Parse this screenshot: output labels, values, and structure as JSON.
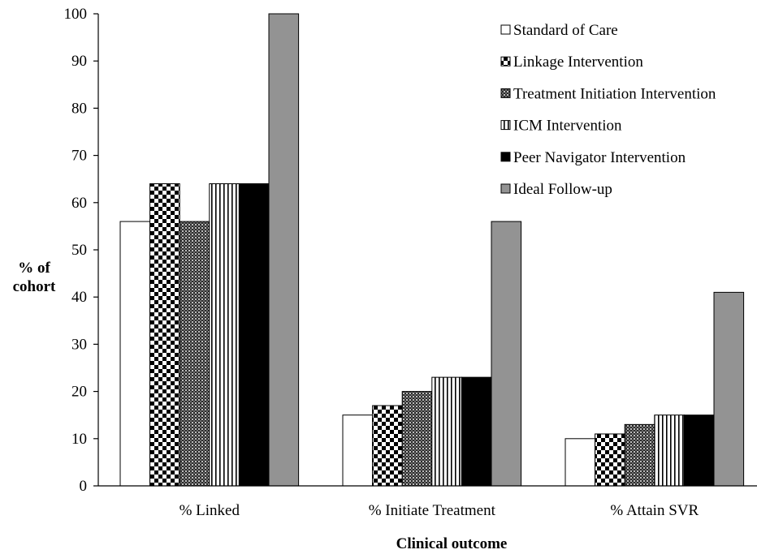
{
  "chart_data": {
    "type": "bar",
    "xlabel": "Clinical outcome",
    "ylabel": [
      "% of",
      "cohort"
    ],
    "ylim": [
      0,
      100
    ],
    "yticks": [
      0,
      10,
      20,
      30,
      40,
      50,
      60,
      70,
      80,
      90,
      100
    ],
    "categories": [
      "% Linked",
      "% Initiate Treatment",
      "% Attain SVR"
    ],
    "legend_position": "top-right",
    "grid": false,
    "series": [
      {
        "name": "Standard of Care",
        "pattern": "white",
        "values": [
          56,
          15,
          10
        ]
      },
      {
        "name": "Linkage Intervention",
        "pattern": "checker",
        "values": [
          64,
          17,
          11
        ]
      },
      {
        "name": "Treatment Initiation Intervention",
        "pattern": "dots",
        "values": [
          56,
          20,
          13
        ]
      },
      {
        "name": "ICM Intervention",
        "pattern": "vstripes",
        "values": [
          64,
          23,
          15
        ]
      },
      {
        "name": "Peer Navigator Intervention",
        "pattern": "black",
        "values": [
          64,
          23,
          15
        ]
      },
      {
        "name": "Ideal Follow-up",
        "pattern": "gray",
        "values": [
          100,
          56,
          41
        ]
      }
    ],
    "colors": {
      "gray": "#939393",
      "black": "#000000",
      "white": "#ffffff"
    }
  }
}
